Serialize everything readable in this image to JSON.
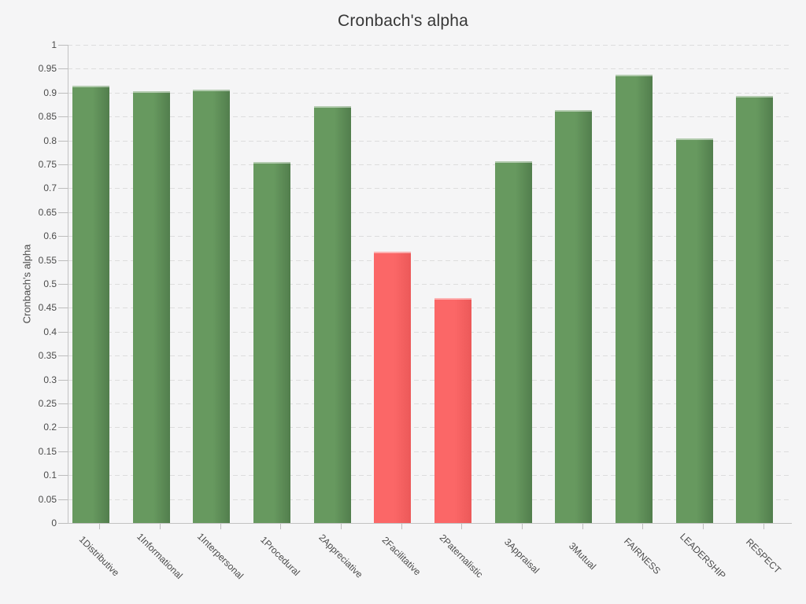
{
  "page": {
    "background_color": "#f5f5f6",
    "text_color": "#4b4b4b",
    "title_color": "#373737"
  },
  "chart_data": {
    "type": "bar",
    "title": "Cronbach's alpha",
    "ylabel": "Cronbach's alpha",
    "xlabel": "",
    "ylim": [
      0,
      1
    ],
    "ytick_step": 0.05,
    "grid": "dashed-horizontal",
    "legend": "none",
    "categories": [
      "1Distributive",
      "1Informational",
      "1Interpersonal",
      "1Procedural",
      "2Appreciative",
      "2Facilitative",
      "2Paternalistic",
      "3Appraisal",
      "3Mutual",
      "FAIRNESS",
      "LEADERSHIP",
      "RESPECT"
    ],
    "values": [
      0.915,
      0.903,
      0.907,
      0.755,
      0.871,
      0.567,
      0.47,
      0.756,
      0.863,
      0.937,
      0.804,
      0.893
    ],
    "bar_colors": [
      "green",
      "green",
      "green",
      "green",
      "green",
      "red",
      "red",
      "green",
      "green",
      "green",
      "green",
      "green"
    ],
    "palette": {
      "green": {
        "start": "#67995f",
        "end": "#527e4d"
      },
      "red": {
        "start": "#fb6767",
        "end": "#ec5959"
      }
    }
  }
}
